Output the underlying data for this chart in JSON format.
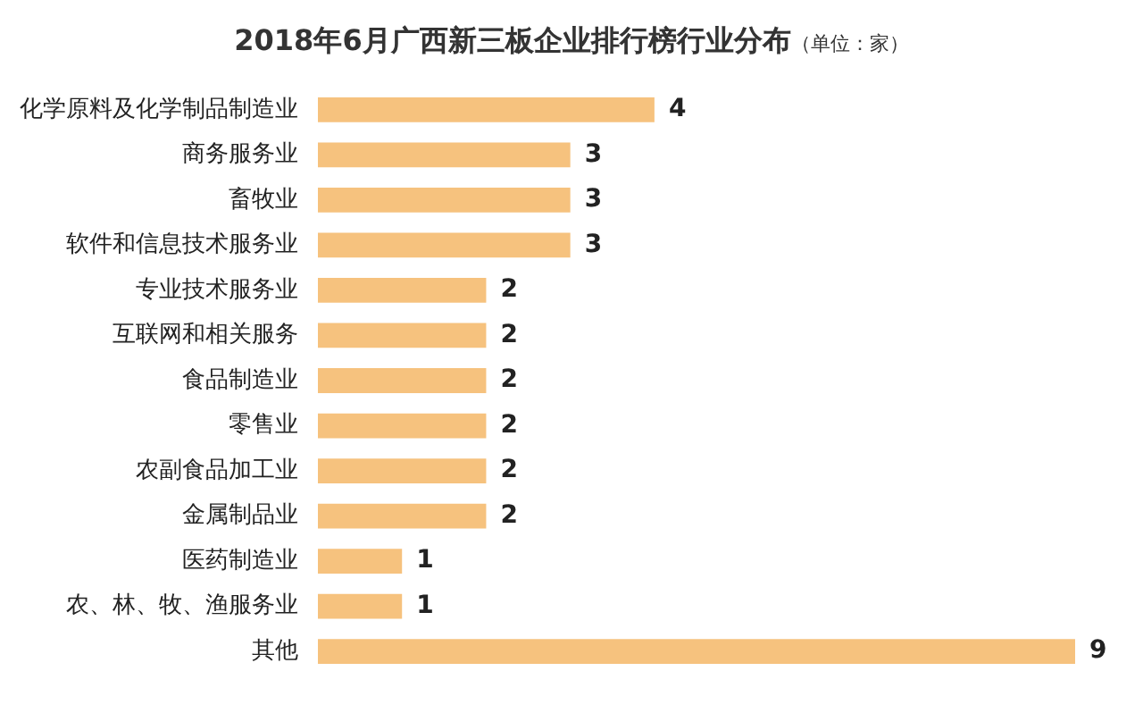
{
  "chart_data": {
    "type": "bar",
    "orientation": "horizontal",
    "title": "2018年6月广西新三板企业排行榜行业分布",
    "subtitle": "（单位：家）",
    "categories": [
      "化学原料及化学制品制造业",
      "商务服务业",
      "畜牧业",
      "软件和信息技术服务业",
      "专业技术服务业",
      "互联网和相关服务",
      "食品制造业",
      "零售业",
      "农副食品加工业",
      "金属制品业",
      "医药制造业",
      "农、林、牧、渔服务业",
      "其他"
    ],
    "values": [
      4,
      3,
      3,
      3,
      2,
      2,
      2,
      2,
      2,
      2,
      1,
      1,
      9
    ],
    "color": "#f6c27e",
    "data_labels": true
  }
}
